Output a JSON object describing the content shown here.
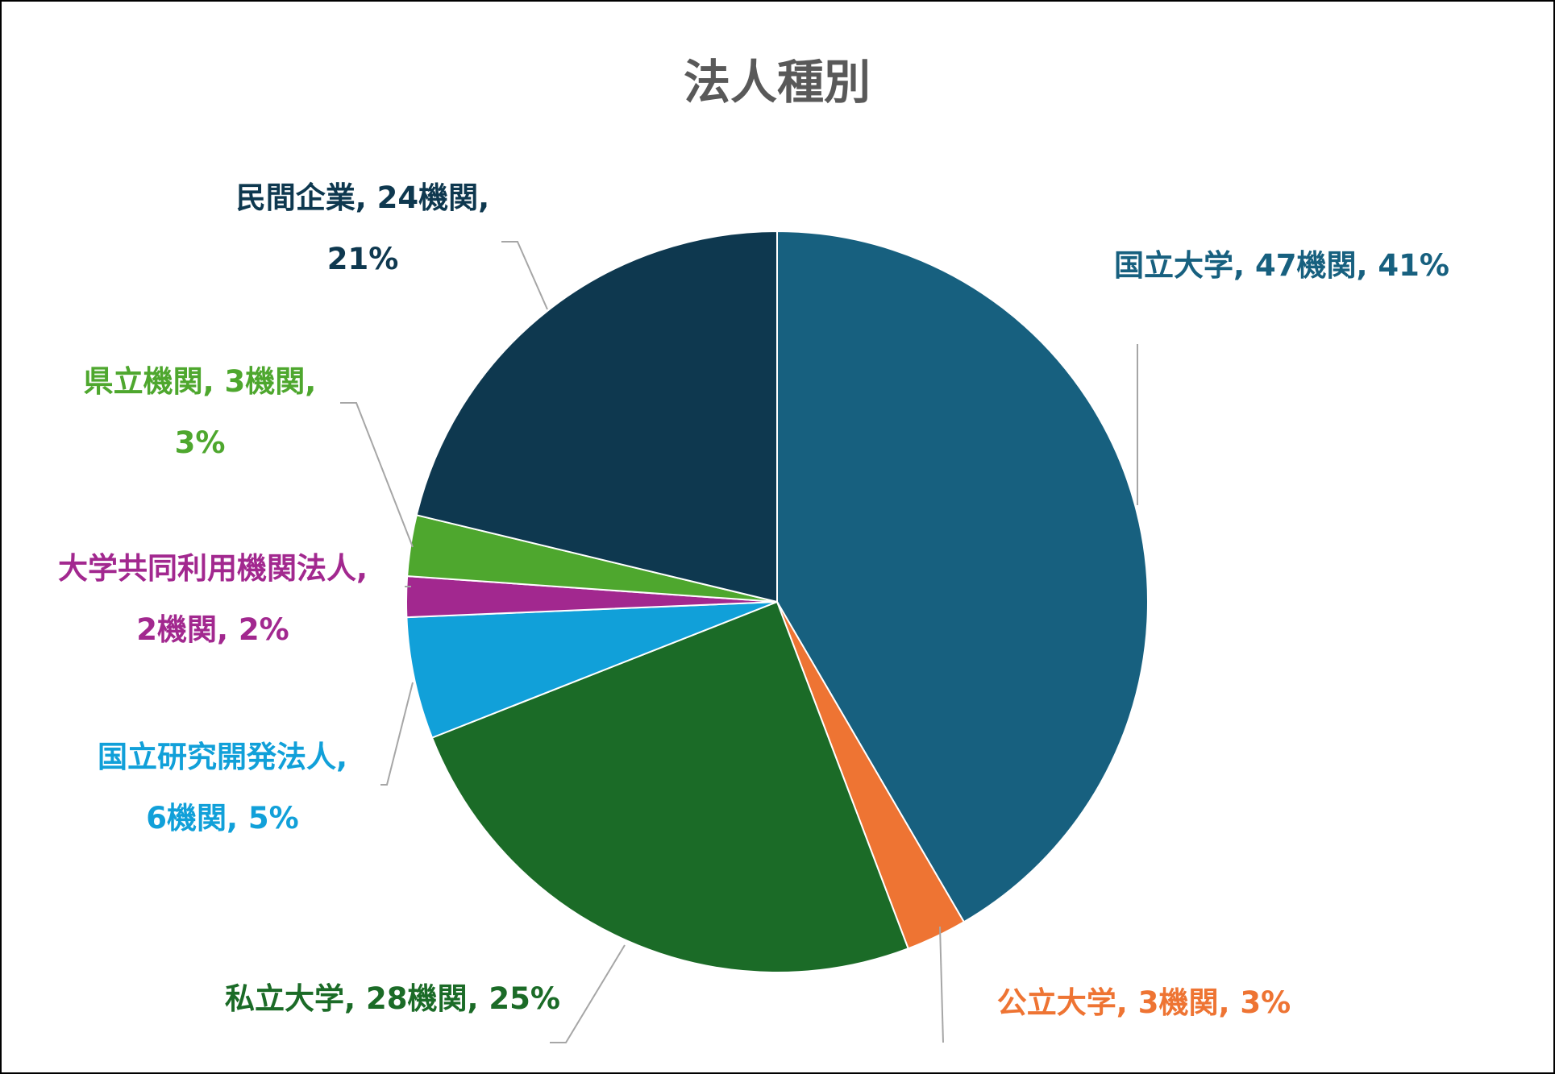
{
  "chart_data": {
    "type": "pie",
    "title": "法人種別",
    "unit": "機関",
    "slices": [
      {
        "name": "国立大学",
        "value": 47,
        "percent": 41,
        "color": "#17607f",
        "label_lines": [
          "国立大学, 47機関, 41%"
        ]
      },
      {
        "name": "公立大学",
        "value": 3,
        "percent": 3,
        "color": "#ee7433",
        "label_lines": [
          "公立大学, 3機関, 3%"
        ]
      },
      {
        "name": "私立大学",
        "value": 28,
        "percent": 25,
        "color": "#1b6b27",
        "label_lines": [
          "私立大学, 28機関, 25%"
        ]
      },
      {
        "name": "国立研究開発法人",
        "value": 6,
        "percent": 5,
        "color": "#11a0d9",
        "label_lines": [
          "国立研究開発法人,",
          "6機関, 5%"
        ]
      },
      {
        "name": "大学共同利用機関法人",
        "value": 2,
        "percent": 2,
        "color": "#a2288f",
        "label_lines": [
          "大学共同利用機関法人,",
          "2機関, 2%"
        ]
      },
      {
        "name": "県立機関",
        "value": 3,
        "percent": 3,
        "color": "#4ea72e",
        "label_lines": [
          "県立機関, 3機関,",
          "3%"
        ]
      },
      {
        "name": "民間企業",
        "value": 24,
        "percent": 21,
        "color": "#0e384f",
        "label_lines": [
          "民間企業, 24機関,",
          "21%"
        ]
      }
    ]
  }
}
